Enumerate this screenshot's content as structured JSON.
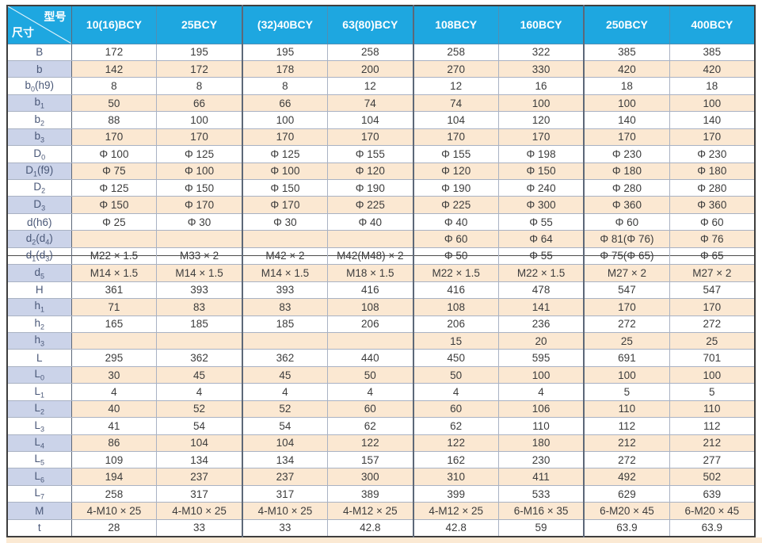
{
  "table": {
    "corner": {
      "top_right": "型号",
      "bottom_left": "尺寸"
    },
    "columns": [
      "10(16)BCY",
      "25BCY",
      "(32)40BCY",
      "63(80)BCY",
      "108BCY",
      "160BCY",
      "250BCY",
      "400BCY"
    ],
    "rows": [
      {
        "label": "B",
        "values": [
          "172",
          "195",
          "195",
          "258",
          "258",
          "322",
          "385",
          "385"
        ]
      },
      {
        "label": "b",
        "values": [
          "142",
          "172",
          "178",
          "200",
          "270",
          "330",
          "420",
          "420"
        ]
      },
      {
        "label": "b_0(h9)",
        "values": [
          "8",
          "8",
          "8",
          "12",
          "12",
          "16",
          "18",
          "18"
        ]
      },
      {
        "label": "b_1",
        "values": [
          "50",
          "66",
          "66",
          "74",
          "74",
          "100",
          "100",
          "100"
        ]
      },
      {
        "label": "b_2",
        "values": [
          "88",
          "100",
          "100",
          "104",
          "104",
          "120",
          "140",
          "140"
        ]
      },
      {
        "label": "b_3",
        "values": [
          "170",
          "170",
          "170",
          "170",
          "170",
          "170",
          "170",
          "170"
        ]
      },
      {
        "label": "D_0",
        "values": [
          "Φ 100",
          "Φ 125",
          "Φ 125",
          "Φ 155",
          "Φ 155",
          "Φ 198",
          "Φ 230",
          "Φ 230"
        ]
      },
      {
        "label": "D_1(f9)",
        "values": [
          "Φ 75",
          "Φ 100",
          "Φ 100",
          "Φ 120",
          "Φ 120",
          "Φ 150",
          "Φ 180",
          "Φ 180"
        ]
      },
      {
        "label": "D_2",
        "values": [
          "Φ 125",
          "Φ 150",
          "Φ 150",
          "Φ 190",
          "Φ 190",
          "Φ 240",
          "Φ 280",
          "Φ 280"
        ]
      },
      {
        "label": "D_3",
        "values": [
          "Φ 150",
          "Φ 170",
          "Φ 170",
          "Φ 225",
          "Φ 225",
          "Φ 300",
          "Φ 360",
          "Φ 360"
        ]
      },
      {
        "label": "d(h6)",
        "values": [
          "Φ 25",
          "Φ 30",
          "Φ 30",
          "Φ 40",
          "Φ 40",
          "Φ 55",
          "Φ 60",
          "Φ 60"
        ]
      },
      {
        "label": "d_2(d_4)",
        "values": [
          "",
          "",
          "",
          "",
          "Φ 60",
          "Φ 64",
          "Φ 81(Φ 76)",
          "Φ 76"
        ]
      },
      {
        "label": "d_1(d_3)",
        "strike": true,
        "values": [
          "M22 × 1.5",
          "M33 × 2",
          "M42 × 2",
          "M42(M48) × 2",
          "Φ 50",
          "Φ 55",
          "Φ 75(Φ 65)",
          "Φ 65"
        ]
      },
      {
        "label": "d_5",
        "values": [
          "M14 × 1.5",
          "M14 × 1.5",
          "M14 × 1.5",
          "M18 × 1.5",
          "M22 × 1.5",
          "M22 × 1.5",
          "M27 × 2",
          "M27 × 2"
        ]
      },
      {
        "label": "H",
        "values": [
          "361",
          "393",
          "393",
          "416",
          "416",
          "478",
          "547",
          "547"
        ]
      },
      {
        "label": "h_1",
        "values": [
          "71",
          "83",
          "83",
          "108",
          "108",
          "141",
          "170",
          "170"
        ]
      },
      {
        "label": "h_2",
        "values": [
          "165",
          "185",
          "185",
          "206",
          "206",
          "236",
          "272",
          "272"
        ]
      },
      {
        "label": "h_3",
        "values": [
          "",
          "",
          "",
          "",
          "15",
          "20",
          "25",
          "25"
        ]
      },
      {
        "label": "L",
        "values": [
          "295",
          "362",
          "362",
          "440",
          "450",
          "595",
          "691",
          "701"
        ]
      },
      {
        "label": "L_0",
        "values": [
          "30",
          "45",
          "45",
          "50",
          "50",
          "100",
          "100",
          "100"
        ]
      },
      {
        "label": "L_1",
        "values": [
          "4",
          "4",
          "4",
          "4",
          "4",
          "4",
          "5",
          "5"
        ]
      },
      {
        "label": "L_2",
        "values": [
          "40",
          "52",
          "52",
          "60",
          "60",
          "106",
          "110",
          "110"
        ]
      },
      {
        "label": "L_3",
        "values": [
          "41",
          "54",
          "54",
          "62",
          "62",
          "110",
          "112",
          "112"
        ]
      },
      {
        "label": "L_4",
        "strike": true,
        "values": [
          "86",
          "104",
          "104",
          "122",
          "122",
          "180",
          "212",
          "212"
        ]
      },
      {
        "label": "L_5",
        "values": [
          "109",
          "134",
          "134",
          "157",
          "162",
          "230",
          "272",
          "277"
        ]
      },
      {
        "label": "L_6",
        "values": [
          "194",
          "237",
          "237",
          "300",
          "310",
          "411",
          "492",
          "502"
        ]
      },
      {
        "label": "L_7",
        "values": [
          "258",
          "317",
          "317",
          "389",
          "399",
          "533",
          "629",
          "639"
        ]
      },
      {
        "label": "M",
        "values": [
          "4-M10 × 25",
          "4-M10 × 25",
          "4-M10 × 25",
          "4-M12 × 25",
          "4-M12 × 25",
          "6-M16 × 35",
          "6-M20 × 45",
          "6-M20 × 45"
        ]
      },
      {
        "label": "t",
        "values": [
          "28",
          "33",
          "33",
          "42.8",
          "42.8",
          "59",
          "63.9",
          "63.9"
        ]
      }
    ]
  },
  "colors": {
    "header_bg": "#1ea7e0",
    "label_row_shade": "#cbd3e9",
    "data_row_shade": "#fbe8d2",
    "outer_border": "#3e3e3e",
    "grid_line": "#a9b2c3",
    "group_separator": "#5d6878",
    "label_text": "#4a5878",
    "cell_text": "#3c3c3c",
    "bottom_strip": "#fbe9d3"
  }
}
